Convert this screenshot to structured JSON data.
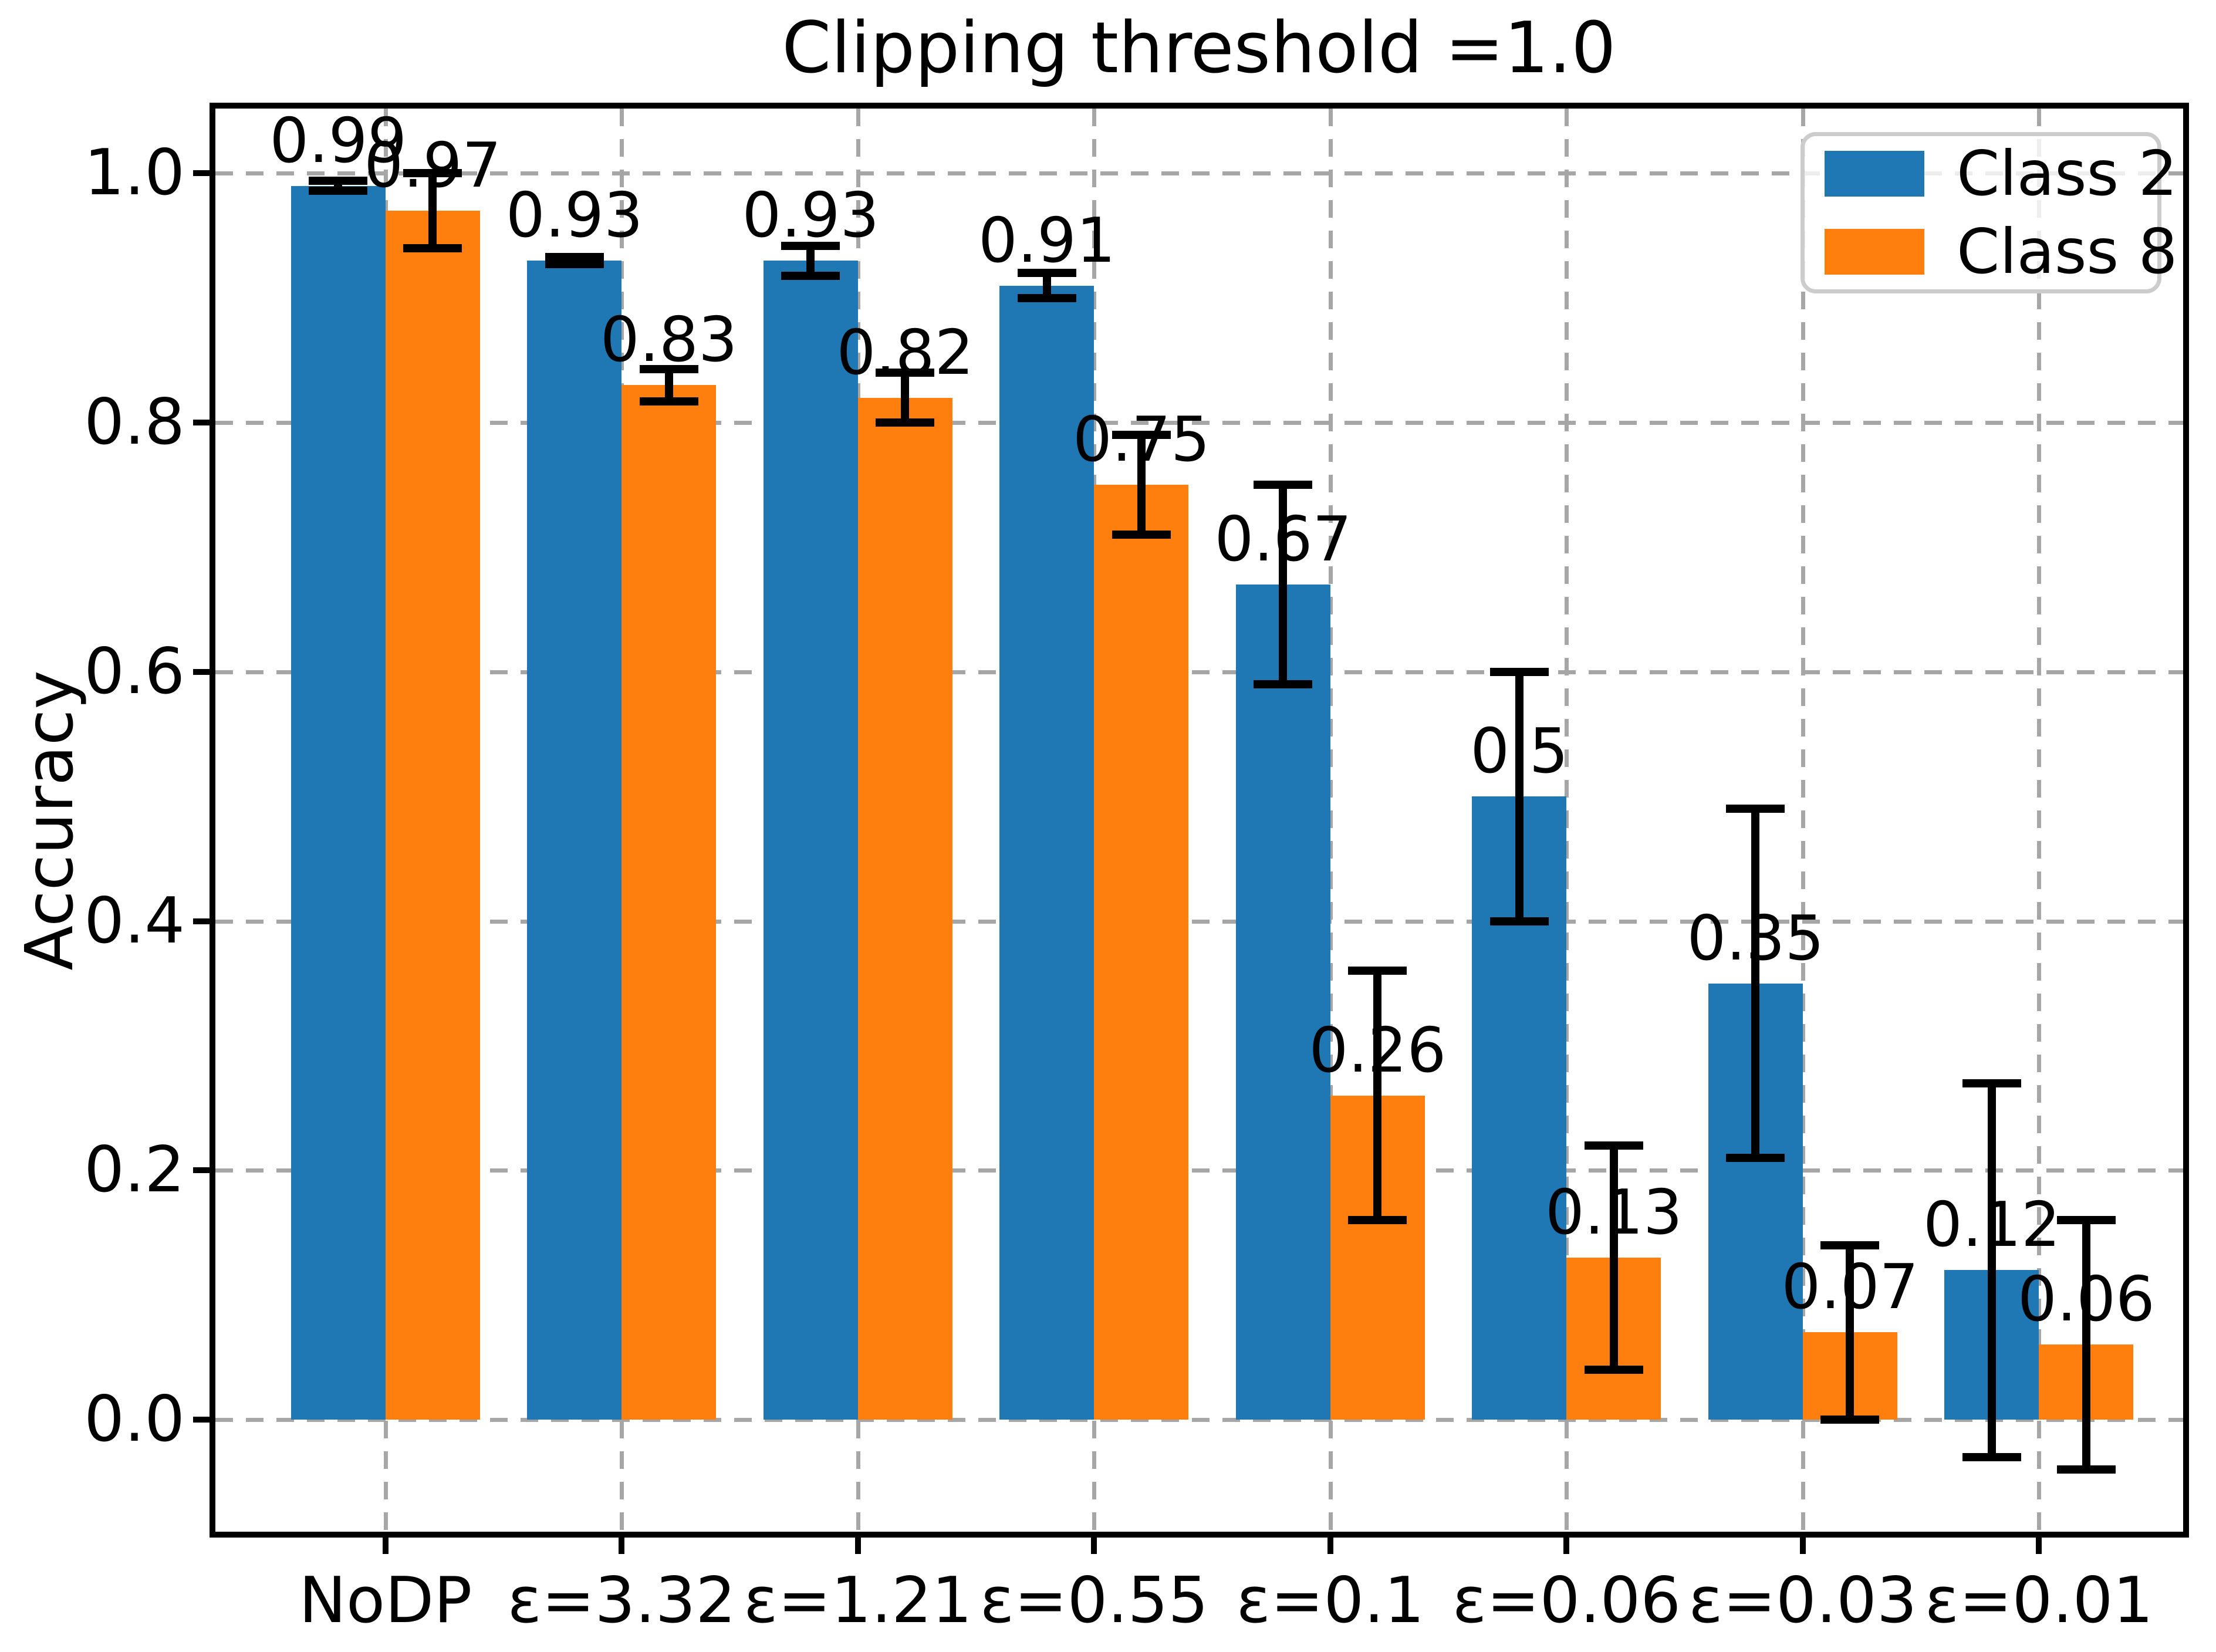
{
  "chart_data": {
    "type": "bar",
    "title": "Clipping threshold =1.0",
    "xlabel": "",
    "ylabel": "Accuracy",
    "categories": [
      "NoDP",
      "ε=3.32",
      "ε=1.21",
      "ε=0.55",
      "ε=0.1",
      "ε=0.06",
      "ε=0.03",
      "ε=0.01"
    ],
    "series": [
      {
        "name": "Class 2",
        "color": "#1f77b4",
        "values": [
          0.99,
          0.93,
          0.93,
          0.91,
          0.67,
          0.5,
          0.35,
          0.12
        ],
        "errors": [
          0.004,
          0.003,
          0.012,
          0.01,
          0.08,
          0.1,
          0.14,
          0.15
        ],
        "labels": [
          "0.99",
          "0.93",
          "0.93",
          "0.91",
          "0.67",
          "0.5",
          "0.35",
          "0.12"
        ]
      },
      {
        "name": "Class 8",
        "color": "#ff7f0e",
        "values": [
          0.97,
          0.83,
          0.82,
          0.75,
          0.26,
          0.13,
          0.07,
          0.06
        ],
        "errors": [
          0.03,
          0.013,
          0.02,
          0.04,
          0.1,
          0.09,
          0.07,
          0.1
        ],
        "labels": [
          "0.97",
          "0.83",
          "0.82",
          "0.75",
          "0.26",
          "0.13",
          "0.07",
          "0.06"
        ]
      }
    ],
    "yticks": [
      0.0,
      0.2,
      0.4,
      0.6,
      0.8,
      1.0
    ],
    "ytick_labels": [
      "0.0",
      "0.2",
      "0.4",
      "0.6",
      "0.8",
      "1.0"
    ],
    "ylim": [
      -0.09,
      1.052
    ],
    "xlim": [
      -0.72,
      7.61
    ],
    "bar_width": 0.4,
    "grid": true,
    "error_color": "#000000",
    "legend": {
      "position": "upper right",
      "entries": [
        "Class 2",
        "Class 8"
      ]
    }
  }
}
